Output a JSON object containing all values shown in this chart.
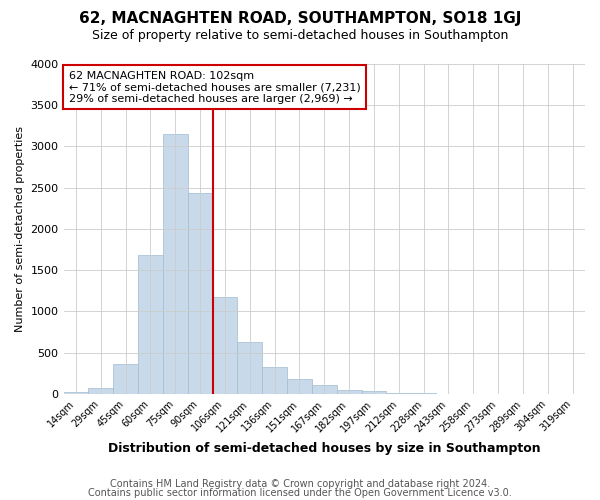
{
  "title1": "62, MACNAGHTEN ROAD, SOUTHAMPTON, SO18 1GJ",
  "title2": "Size of property relative to semi-detached houses in Southampton",
  "xlabel": "Distribution of semi-detached houses by size in Southampton",
  "ylabel": "Number of semi-detached properties",
  "footnote1": "Contains HM Land Registry data © Crown copyright and database right 2024.",
  "footnote2": "Contains public sector information licensed under the Open Government Licence v3.0.",
  "bin_labels": [
    "14sqm",
    "29sqm",
    "45sqm",
    "60sqm",
    "75sqm",
    "90sqm",
    "106sqm",
    "121sqm",
    "136sqm",
    "151sqm",
    "167sqm",
    "182sqm",
    "197sqm",
    "212sqm",
    "228sqm",
    "243sqm",
    "258sqm",
    "273sqm",
    "289sqm",
    "304sqm",
    "319sqm"
  ],
  "bar_values": [
    28,
    70,
    360,
    1680,
    3150,
    2440,
    1170,
    635,
    330,
    175,
    110,
    50,
    40,
    10,
    5,
    3,
    2,
    1,
    0,
    0,
    0
  ],
  "bar_color": "#c8daea",
  "bar_edge_color": "#a0bcd0",
  "grid_color": "#cccccc",
  "property_line_color": "#cc0000",
  "property_line_bin": 6,
  "annotation_text": "62 MACNAGHTEN ROAD: 102sqm\n← 71% of semi-detached houses are smaller (7,231)\n29% of semi-detached houses are larger (2,969) →",
  "annotation_box_color": "#ffffff",
  "annotation_box_edge_color": "#cc0000",
  "ylim": [
    0,
    4000
  ],
  "yticks": [
    0,
    500,
    1000,
    1500,
    2000,
    2500,
    3000,
    3500,
    4000
  ],
  "bg_color": "#ffffff",
  "plot_bg_color": "#ffffff",
  "title1_fontsize": 11,
  "title2_fontsize": 9,
  "ylabel_fontsize": 8,
  "xlabel_fontsize": 9,
  "footnote_fontsize": 7
}
